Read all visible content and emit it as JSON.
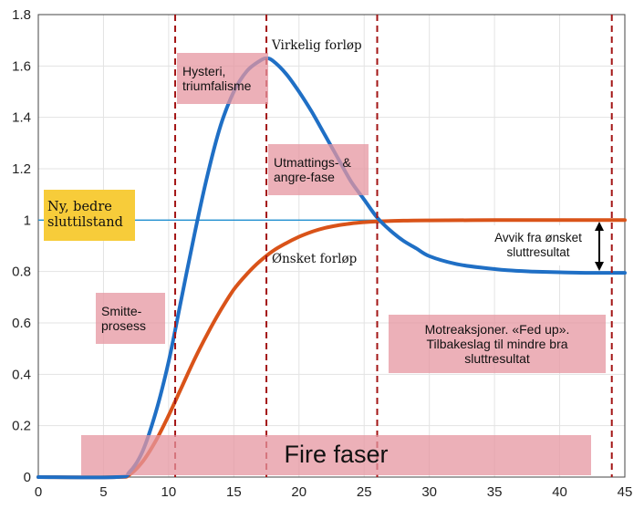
{
  "chart_data": {
    "type": "line",
    "title": "",
    "xlabel": "",
    "ylabel": "",
    "xlim": [
      0,
      45
    ],
    "ylim": [
      0,
      1.8
    ],
    "xticks": [
      0,
      5,
      10,
      15,
      20,
      25,
      30,
      35,
      40,
      45
    ],
    "yticks": [
      0,
      0.2,
      0.4,
      0.6,
      0.8,
      1,
      1.2,
      1.4,
      1.6,
      1.8
    ],
    "xtick_labels": [
      "0",
      "5",
      "10",
      "15",
      "20",
      "25",
      "30",
      "35",
      "40",
      "45"
    ],
    "ytick_labels": [
      "0",
      "0.2",
      "0.4",
      "0.6",
      "0.8",
      "1",
      "1.2",
      "1.4",
      "1.6",
      "1.8"
    ],
    "grid": true,
    "series": [
      {
        "name": "Virkelig forløp",
        "color": "#1f6fc5",
        "x": [
          0,
          6,
          7,
          8,
          9,
          10,
          11,
          12,
          13,
          14,
          15,
          16,
          17,
          17.5,
          18,
          19,
          20,
          21,
          22,
          23,
          24,
          25,
          26,
          27,
          28,
          29,
          30,
          32,
          34,
          36,
          38,
          40,
          42,
          45
        ],
        "y": [
          0,
          0,
          0.02,
          0.1,
          0.25,
          0.45,
          0.7,
          0.95,
          1.18,
          1.37,
          1.5,
          1.58,
          1.62,
          1.63,
          1.62,
          1.57,
          1.5,
          1.42,
          1.33,
          1.24,
          1.15,
          1.08,
          1.01,
          0.96,
          0.92,
          0.89,
          0.86,
          0.83,
          0.815,
          0.805,
          0.8,
          0.797,
          0.795,
          0.795
        ]
      },
      {
        "name": "Ønsket forløp",
        "color": "#d95319",
        "x": [
          0,
          6,
          7,
          8,
          9,
          10,
          11,
          12,
          13,
          14,
          15,
          16,
          17,
          18,
          19,
          20,
          21,
          22,
          23,
          24,
          25,
          26,
          28,
          30,
          35,
          40,
          45
        ],
        "y": [
          0,
          0,
          0.01,
          0.06,
          0.14,
          0.24,
          0.35,
          0.46,
          0.56,
          0.65,
          0.73,
          0.79,
          0.84,
          0.88,
          0.91,
          0.935,
          0.955,
          0.97,
          0.98,
          0.987,
          0.992,
          0.995,
          0.998,
          0.999,
          1.0,
          1.0,
          1.0
        ]
      }
    ],
    "reference_line": {
      "y": 1,
      "color": "#1f8fd0"
    },
    "vertical_lines": {
      "x": [
        10.5,
        17.5,
        26,
        44
      ],
      "color": "#a31515"
    },
    "annotations": {
      "virkelig": "Virkelig forløp",
      "onsket": "Ønsket forløp",
      "ny_bedre": "Ny, bedre sluttilstand",
      "hysteri": "Hysteri, triumfalisme",
      "utmatting": "Utmattings- & angre-fase",
      "smitte": "Smitte-prosess",
      "motreaksjoner": "Motreaksjoner. «Fed up». Tilbakeslag til mindre bra sluttresultat",
      "avvik": "Avvik fra ønsket sluttresultat",
      "fire_faser": "Fire faser"
    }
  }
}
